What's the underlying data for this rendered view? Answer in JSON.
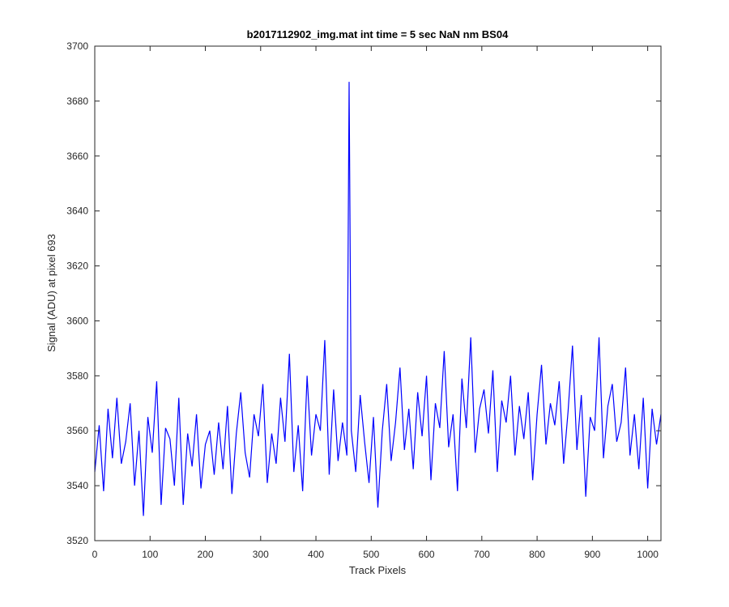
{
  "chart_data": {
    "type": "line",
    "title": "b2017112902_img.mat int time = 5 sec  NaN nm BS04",
    "xlabel": "Track Pixels",
    "ylabel": "Signal (ADU) at pixel 693",
    "xlim": [
      0,
      1024
    ],
    "ylim": [
      3520,
      3700
    ],
    "xticks": [
      0,
      100,
      200,
      300,
      400,
      500,
      600,
      700,
      800,
      900,
      1000
    ],
    "yticks": [
      3520,
      3540,
      3560,
      3580,
      3600,
      3620,
      3640,
      3660,
      3680,
      3700
    ],
    "grid": false,
    "legend": "none",
    "series": [
      {
        "color": "#0000ff",
        "x": [
          0,
          8,
          16,
          24,
          32,
          40,
          48,
          56,
          64,
          72,
          80,
          88,
          96,
          104,
          112,
          120,
          128,
          136,
          144,
          152,
          160,
          168,
          176,
          184,
          192,
          200,
          208,
          216,
          224,
          232,
          240,
          248,
          256,
          264,
          272,
          280,
          288,
          296,
          304,
          312,
          320,
          328,
          336,
          344,
          352,
          360,
          368,
          376,
          384,
          392,
          400,
          408,
          416,
          424,
          432,
          440,
          448,
          456,
          460,
          464,
          472,
          480,
          488,
          496,
          504,
          512,
          520,
          528,
          536,
          544,
          552,
          560,
          568,
          576,
          584,
          592,
          600,
          608,
          616,
          624,
          632,
          640,
          648,
          656,
          664,
          672,
          680,
          688,
          696,
          704,
          712,
          720,
          728,
          736,
          744,
          752,
          760,
          768,
          776,
          784,
          792,
          800,
          808,
          816,
          824,
          832,
          840,
          848,
          856,
          864,
          872,
          880,
          888,
          896,
          904,
          912,
          920,
          928,
          936,
          944,
          952,
          960,
          968,
          976,
          984,
          992,
          1000,
          1008,
          1016,
          1024
        ],
        "y": [
          3545,
          3562,
          3538,
          3568,
          3550,
          3572,
          3548,
          3556,
          3570,
          3540,
          3560,
          3529,
          3565,
          3552,
          3578,
          3533,
          3561,
          3557,
          3540,
          3572,
          3533,
          3559,
          3547,
          3566,
          3539,
          3555,
          3560,
          3544,
          3563,
          3546,
          3569,
          3537,
          3559,
          3574,
          3552,
          3543,
          3566,
          3558,
          3577,
          3541,
          3559,
          3548,
          3572,
          3556,
          3588,
          3545,
          3562,
          3538,
          3580,
          3551,
          3566,
          3560,
          3593,
          3544,
          3575,
          3549,
          3563,
          3551,
          3687,
          3560,
          3545,
          3573,
          3556,
          3541,
          3565,
          3532,
          3560,
          3577,
          3549,
          3563,
          3583,
          3553,
          3568,
          3546,
          3574,
          3558,
          3580,
          3542,
          3570,
          3561,
          3589,
          3554,
          3566,
          3538,
          3579,
          3561,
          3594,
          3552,
          3568,
          3575,
          3559,
          3582,
          3545,
          3571,
          3563,
          3580,
          3551,
          3569,
          3557,
          3574,
          3542,
          3566,
          3584,
          3555,
          3570,
          3562,
          3578,
          3548,
          3567,
          3591,
          3553,
          3573,
          3536,
          3565,
          3560,
          3594,
          3550,
          3569,
          3577,
          3556,
          3563,
          3583,
          3551,
          3566,
          3546,
          3572,
          3539,
          3568,
          3555,
          3566
        ]
      }
    ]
  }
}
